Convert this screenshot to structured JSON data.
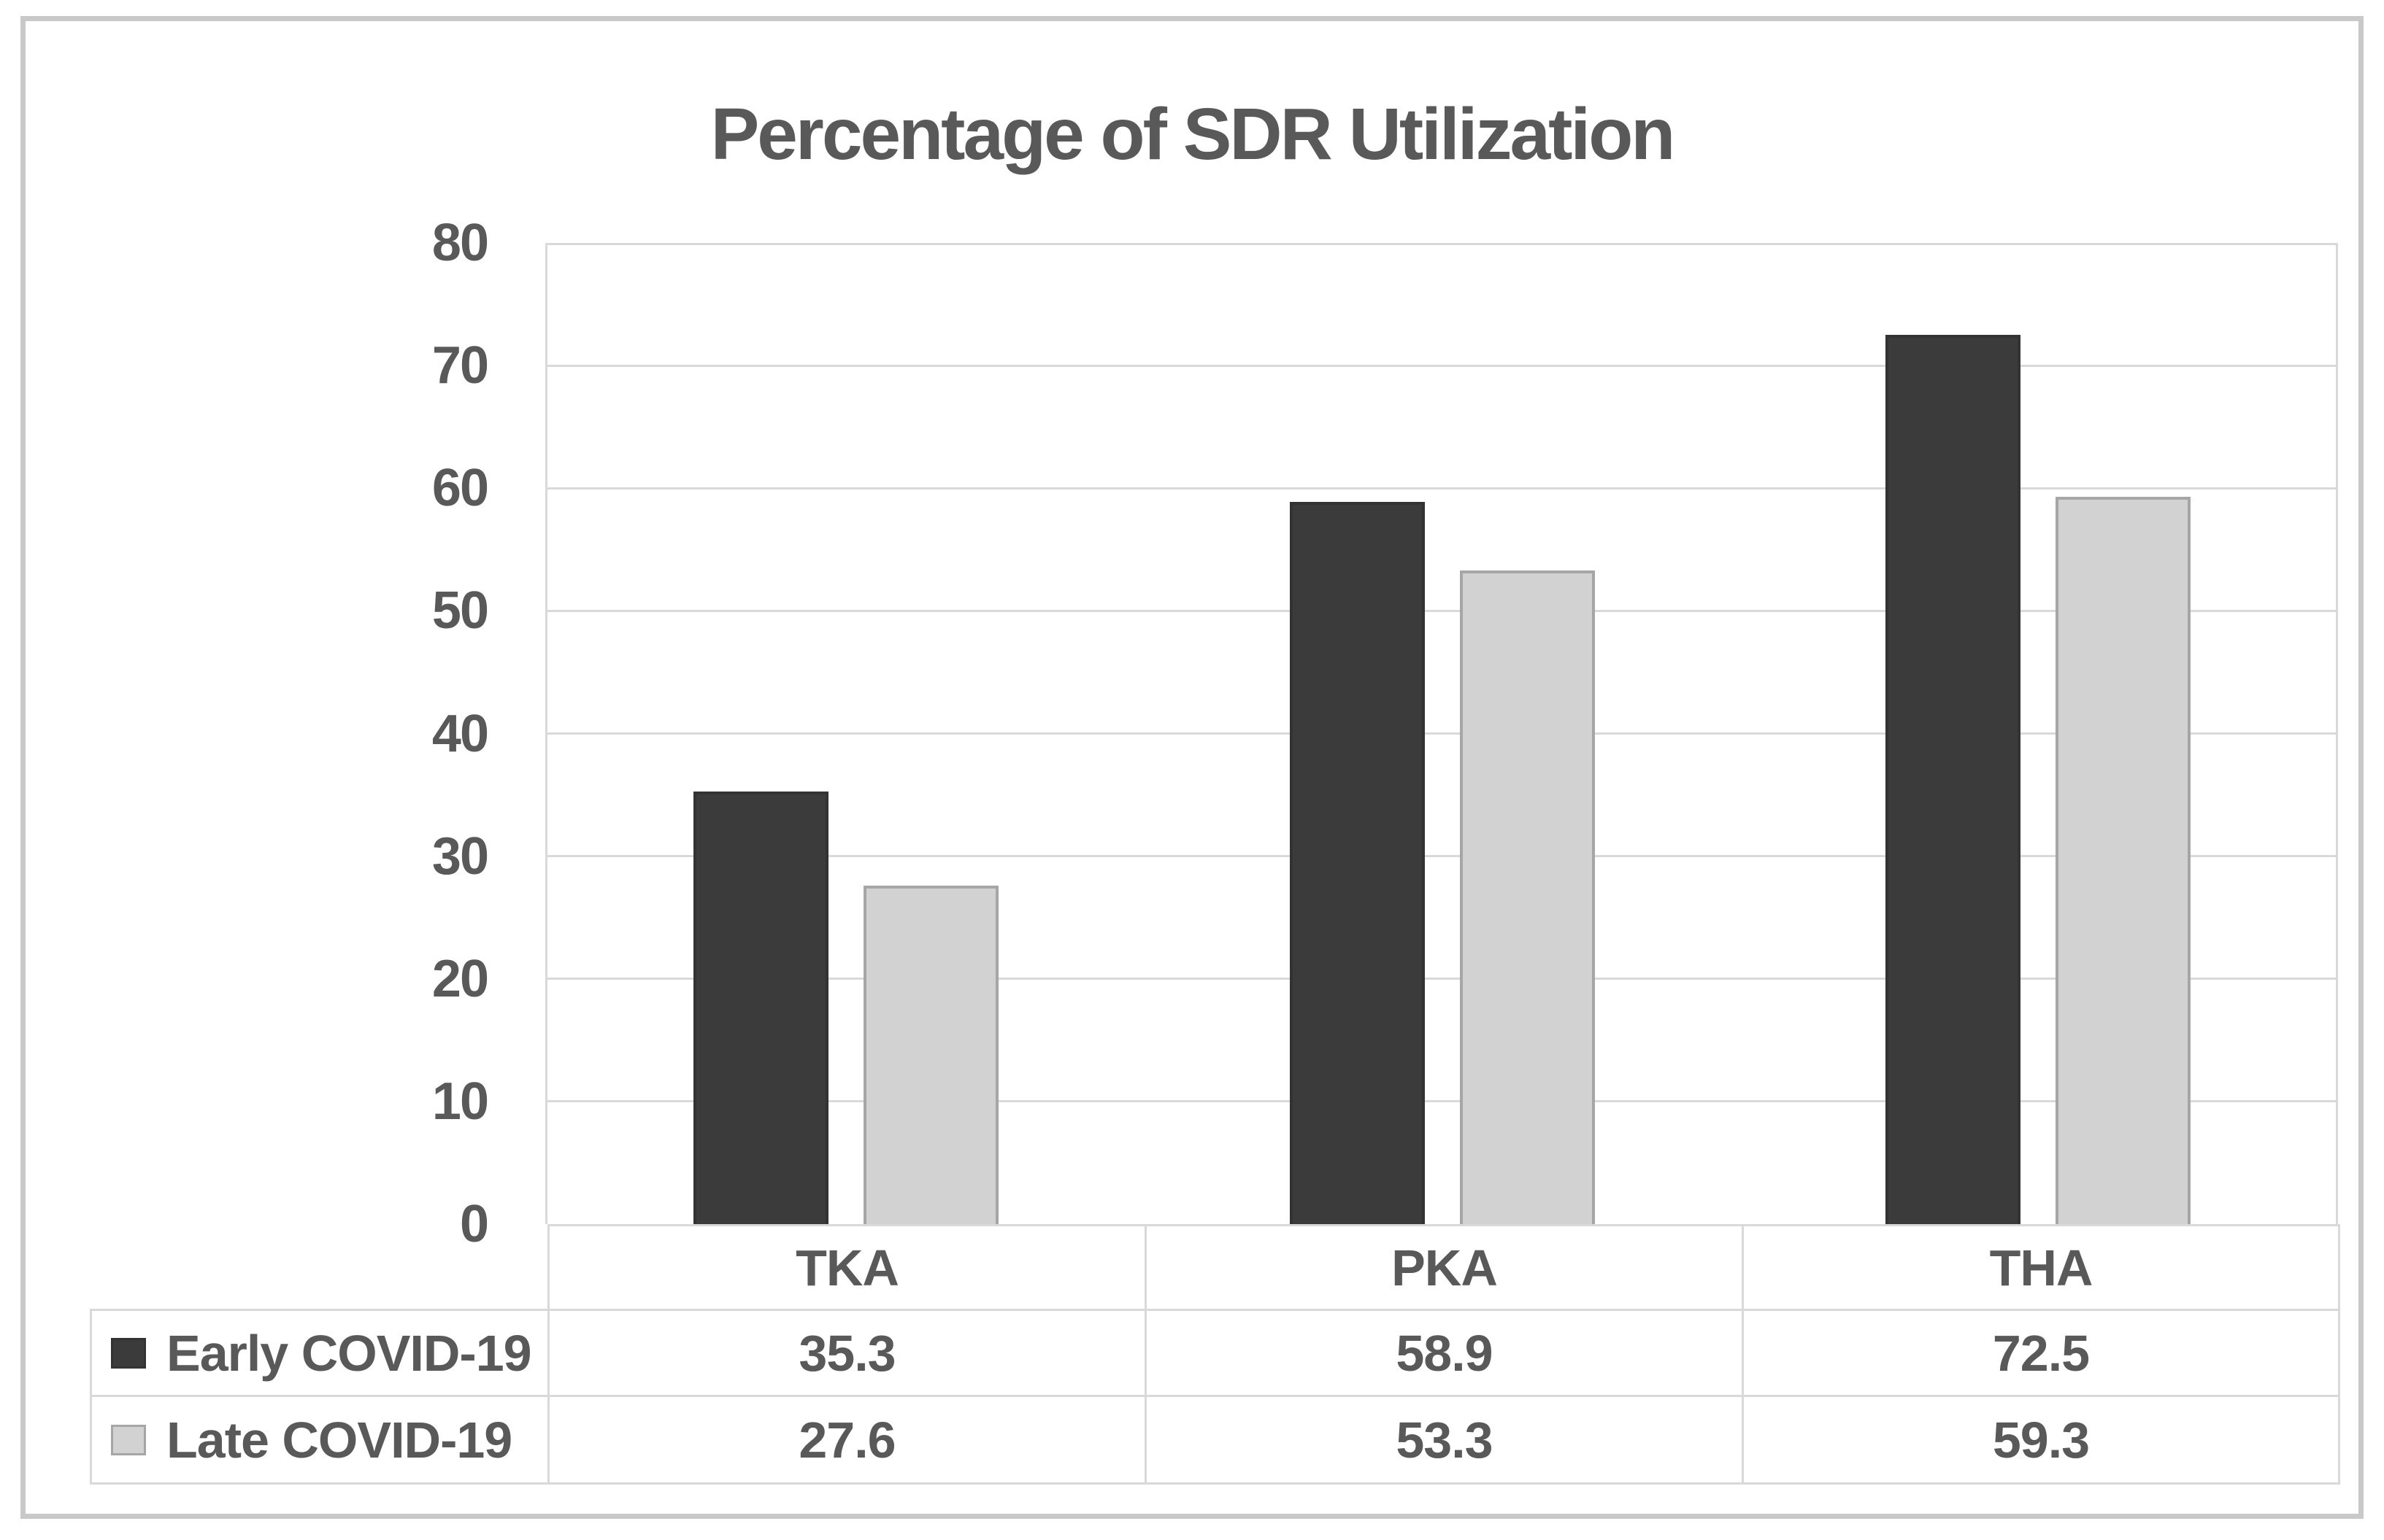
{
  "title": "Percentage of SDR Utilization",
  "colors": {
    "text": "#595959",
    "grid": "#d9d9d9",
    "frame": "#c9c9c9",
    "background": "#ffffff"
  },
  "chart_data": {
    "type": "bar",
    "title": "Percentage of SDR Utilization",
    "xlabel": "",
    "ylabel": "",
    "categories": [
      "TKA",
      "PKA",
      "THA"
    ],
    "series": [
      {
        "name": "Early COVID-19",
        "values": [
          35.3,
          58.9,
          72.5
        ],
        "fill": "#3b3b3b",
        "border": "#333333"
      },
      {
        "name": "Late COVID-19",
        "values": [
          27.6,
          53.3,
          59.3
        ],
        "fill": "#d2d2d2",
        "border": "#a6a6a6"
      }
    ],
    "ylim": [
      0,
      80
    ],
    "ytick_step": 10,
    "yticks": [
      80,
      70,
      60,
      50,
      40,
      30,
      20,
      10,
      0
    ],
    "grid": true,
    "legend_position": "data-table-left",
    "data_table_shown": true
  }
}
